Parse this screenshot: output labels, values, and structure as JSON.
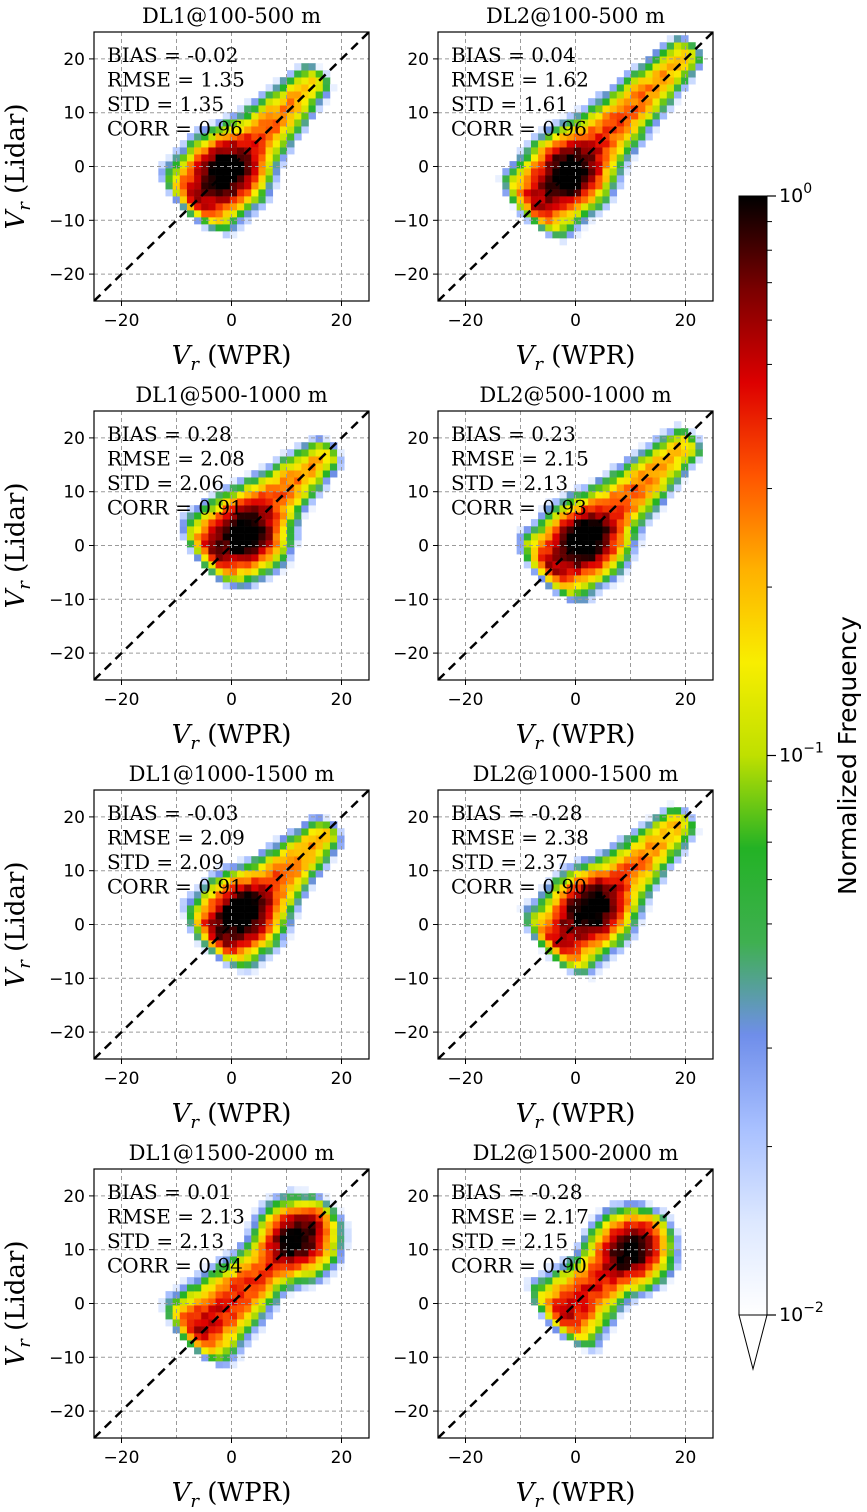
{
  "colorbar": {
    "label": "Normalized Frequency",
    "tick_max": "10^0",
    "tick_mid": "10^-1",
    "tick_min": "10^-2",
    "scale": "log",
    "range": [
      0.01,
      1
    ],
    "colors": [
      "#ffffff",
      "#dde8ff",
      "#a8c0ff",
      "#6f8eea",
      "#3fb050",
      "#23b225",
      "#bfe000",
      "#f8ee00",
      "#ffb000",
      "#ff5500",
      "#dd0000",
      "#7a0000",
      "#000000"
    ]
  },
  "stat_labels": {
    "bias": "BIAS = ",
    "rmse": "RMSE = ",
    "std": "STD = ",
    "corr": "CORR = "
  },
  "axis_labels": {
    "xlabel": "V_r (WPR)",
    "ylabel": "V_r (Lidar)"
  },
  "chart_data": [
    {
      "type": "heatmap",
      "title": "DL1@100-500 m",
      "xlabel": "V_r (WPR)",
      "ylabel": "V_r (Lidar)",
      "xlim": [
        -25,
        25
      ],
      "ylim": [
        -25,
        25
      ],
      "xticks": [
        -20,
        0,
        20
      ],
      "yticks": [
        -20,
        -10,
        0,
        10,
        20
      ],
      "grid": true,
      "reference_line": "y = x (dashed)",
      "stats": {
        "bias": "-0.02",
        "rmse": "1.35",
        "std": "1.35",
        "corr": "0.96"
      },
      "density_core": {
        "from": [
          -6,
          -6
        ],
        "to": [
          15,
          16
        ],
        "peak": [
          -1,
          -1
        ]
      }
    },
    {
      "type": "heatmap",
      "title": "DL2@100-500 m",
      "xlabel": "V_r (WPR)",
      "ylabel": "V_r (Lidar)",
      "xlim": [
        -25,
        25
      ],
      "ylim": [
        -25,
        25
      ],
      "xticks": [
        -20,
        0,
        20
      ],
      "yticks": [
        -20,
        -10,
        0,
        10,
        20
      ],
      "grid": true,
      "reference_line": "y = x (dashed)",
      "stats": {
        "bias": "0.04",
        "rmse": "1.62",
        "std": "1.61",
        "corr": "0.96"
      },
      "density_core": {
        "from": [
          -7,
          -7
        ],
        "to": [
          20,
          21
        ],
        "peak": [
          -1,
          -1
        ]
      }
    },
    {
      "type": "heatmap",
      "title": "DL1@500-1000 m",
      "xlabel": "V_r (WPR)",
      "ylabel": "V_r (Lidar)",
      "xlim": [
        -25,
        25
      ],
      "ylim": [
        -25,
        25
      ],
      "xticks": [
        -20,
        0,
        20
      ],
      "yticks": [
        -20,
        -10,
        0,
        10,
        20
      ],
      "grid": true,
      "reference_line": "y = x (dashed)",
      "stats": {
        "bias": "0.28",
        "rmse": "2.08",
        "std": "2.06",
        "corr": "0.91"
      },
      "density_core": {
        "from": [
          -3,
          -1
        ],
        "to": [
          17,
          17
        ],
        "peak": [
          3,
          2
        ]
      }
    },
    {
      "type": "heatmap",
      "title": "DL2@500-1000 m",
      "xlabel": "V_r (WPR)",
      "ylabel": "V_r (Lidar)",
      "xlim": [
        -25,
        25
      ],
      "ylim": [
        -25,
        25
      ],
      "xticks": [
        -20,
        0,
        20
      ],
      "yticks": [
        -20,
        -10,
        0,
        10,
        20
      ],
      "grid": true,
      "reference_line": "y = x (dashed)",
      "stats": {
        "bias": "0.23",
        "rmse": "2.15",
        "std": "2.13",
        "corr": "0.93"
      },
      "density_core": {
        "from": [
          -4,
          -4
        ],
        "to": [
          20,
          19
        ],
        "peak": [
          2,
          1
        ]
      }
    },
    {
      "type": "heatmap",
      "title": "DL1@1000-1500 m",
      "xlabel": "V_r (WPR)",
      "ylabel": "V_r (Lidar)",
      "xlim": [
        -25,
        25
      ],
      "ylim": [
        -25,
        25
      ],
      "xticks": [
        -20,
        0,
        20
      ],
      "yticks": [
        -20,
        -10,
        0,
        10,
        20
      ],
      "grid": true,
      "reference_line": "y = x (dashed)",
      "stats": {
        "bias": "-0.03",
        "rmse": "2.09",
        "std": "2.09",
        "corr": "0.91"
      },
      "density_core": {
        "from": [
          -2,
          -2
        ],
        "to": [
          17,
          17
        ],
        "peak": [
          2,
          2
        ]
      }
    },
    {
      "type": "heatmap",
      "title": "DL2@1000-1500 m",
      "xlabel": "V_r (WPR)",
      "ylabel": "V_r (Lidar)",
      "xlim": [
        -25,
        25
      ],
      "ylim": [
        -25,
        25
      ],
      "xticks": [
        -20,
        0,
        20
      ],
      "yticks": [
        -20,
        -10,
        0,
        10,
        20
      ],
      "grid": true,
      "reference_line": "y = x (dashed)",
      "stats": {
        "bias": "-0.28",
        "rmse": "2.38",
        "std": "2.37",
        "corr": "0.90"
      },
      "density_core": {
        "from": [
          -3,
          -3
        ],
        "to": [
          19,
          19
        ],
        "peak": [
          3,
          3
        ]
      }
    },
    {
      "type": "heatmap",
      "title": "DL1@1500-2000 m",
      "xlabel": "V_r (WPR)",
      "ylabel": "V_r (Lidar)",
      "xlim": [
        -25,
        25
      ],
      "ylim": [
        -25,
        25
      ],
      "xticks": [
        -20,
        0,
        20
      ],
      "yticks": [
        -20,
        -10,
        0,
        10,
        20
      ],
      "grid": true,
      "reference_line": "y = x (dashed)",
      "stats": {
        "bias": "0.01",
        "rmse": "2.13",
        "std": "2.13",
        "corr": "0.94"
      },
      "density_core": {
        "from": [
          -6,
          -5
        ],
        "to": [
          16,
          16
        ],
        "peak": [
          12,
          12
        ]
      }
    },
    {
      "type": "heatmap",
      "title": "DL2@1500-2000 m",
      "xlabel": "V_r (WPR)",
      "ylabel": "V_r (Lidar)",
      "xlim": [
        -25,
        25
      ],
      "ylim": [
        -25,
        25
      ],
      "xticks": [
        -20,
        0,
        20
      ],
      "yticks": [
        -20,
        -10,
        0,
        10,
        20
      ],
      "grid": true,
      "reference_line": "y = x (dashed)",
      "stats": {
        "bias": "-0.28",
        "rmse": "2.17",
        "std": "2.15",
        "corr": "0.90"
      },
      "density_core": {
        "from": [
          -2,
          -2
        ],
        "to": [
          14,
          14
        ],
        "peak": [
          10,
          10
        ]
      }
    }
  ]
}
